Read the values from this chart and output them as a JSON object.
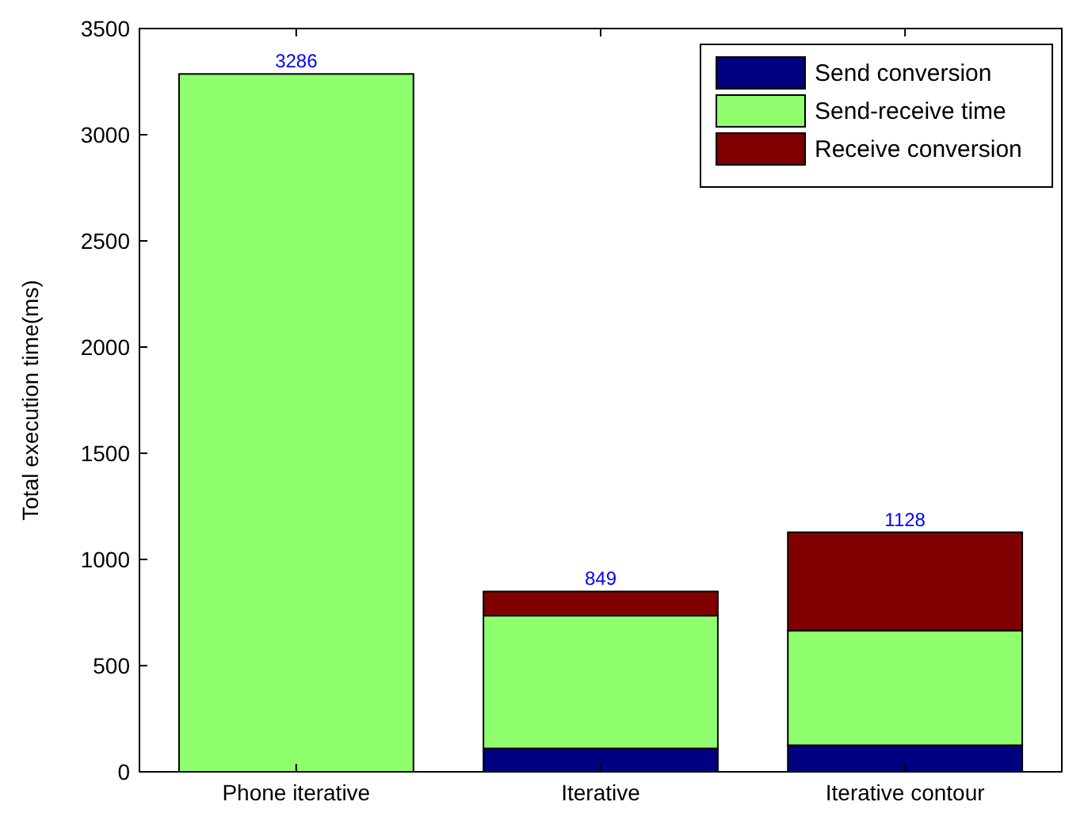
{
  "chart_data": {
    "type": "bar",
    "stacked": true,
    "ylabel": "Total execution time(ms)",
    "categories": [
      "Phone iterative",
      "Iterative",
      "Iterative contour"
    ],
    "series": [
      {
        "name": "Send conversion",
        "color": "#000080",
        "values": [
          0,
          110,
          125
        ]
      },
      {
        "name": "Send-receive time",
        "color": "#90ff6e",
        "values": [
          3286,
          625,
          540
        ]
      },
      {
        "name": "Receive conversion",
        "color": "#800000",
        "values": [
          0,
          114,
          463
        ]
      }
    ],
    "totals": [
      "3286",
      "849",
      "1128"
    ],
    "ylim": [
      0,
      3500
    ],
    "yticks": [
      0,
      500,
      1000,
      1500,
      2000,
      2500,
      3000,
      3500
    ],
    "grid": false,
    "legend": "top right"
  }
}
